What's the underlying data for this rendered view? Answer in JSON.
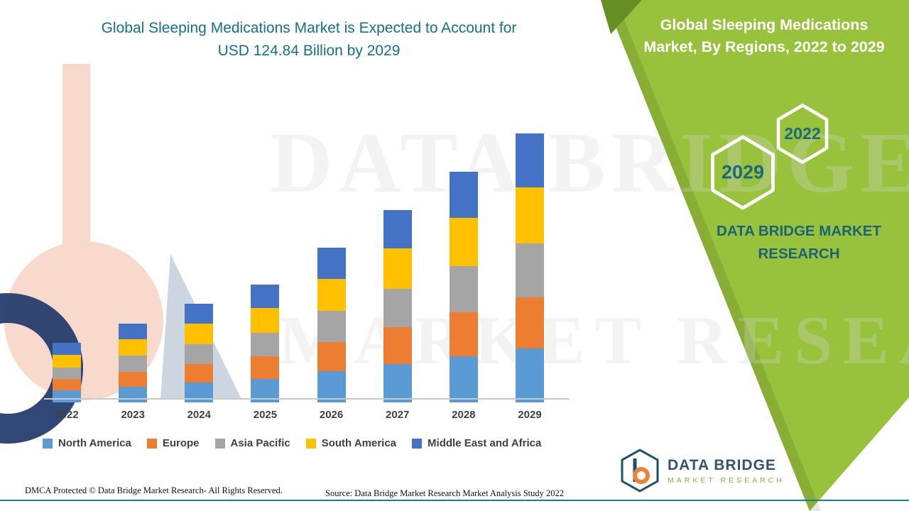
{
  "left_title": {
    "line1": "Global Sleeping Medications Market is Expected to Account for",
    "line2": "USD 124.84 Billion by 2029"
  },
  "right_panel": {
    "title_line1": "Global Sleeping Medications",
    "title_line2": "Market, By Regions, 2022 to 2029",
    "hex_badge_back": "2029",
    "hex_badge_front": "2022",
    "brand_line1": "DATA BRIDGE MARKET",
    "brand_line2": "RESEARCH",
    "panel_color": "#98c23c",
    "badge_text_color": "#1a6a7e"
  },
  "watermark": {
    "line1": "DATA BRIDGE",
    "line2": "MARKET RESEARCH"
  },
  "footer": {
    "dmca": "DMCA Protected © Data Bridge Market Research- All Rights Reserved.",
    "source": "Source: Data Bridge Market Research Market Analysis Study 2022"
  },
  "logo": {
    "name": "DATA BRIDGE",
    "subtitle": "MARKET RESEARCH"
  },
  "chart_data": {
    "type": "bar",
    "stacked": true,
    "title": "Global Sleeping Medications Market is Expected to Account for USD 124.84 Billion by 2029",
    "unit": "USD Billion",
    "categories": [
      "2022",
      "2023",
      "2024",
      "2025",
      "2026",
      "2027",
      "2028",
      "2029"
    ],
    "series": [
      {
        "name": "North America",
        "color": "#5b9bd5",
        "values": [
          5.5,
          7.3,
          9.2,
          10.9,
          14.4,
          17.9,
          21.4,
          25.0
        ]
      },
      {
        "name": "Europe",
        "color": "#ed7d31",
        "values": [
          5.3,
          7.0,
          8.7,
          10.4,
          13.6,
          17.0,
          20.3,
          23.7
        ]
      },
      {
        "name": "Asia Pacific",
        "color": "#a5a5a5",
        "values": [
          5.5,
          7.3,
          9.2,
          10.9,
          14.4,
          17.9,
          21.4,
          25.0
        ]
      },
      {
        "name": "South America",
        "color": "#ffc000",
        "values": [
          5.8,
          7.7,
          9.6,
          11.5,
          15.1,
          18.8,
          22.5,
          26.2
        ]
      },
      {
        "name": "Middle East and Africa",
        "color": "#4472c4",
        "values": [
          5.6,
          7.3,
          9.1,
          11.0,
          14.3,
          17.7,
          21.5,
          24.94
        ]
      }
    ],
    "totals": [
      27.7,
      36.6,
      45.8,
      54.7,
      71.8,
      89.3,
      107.1,
      124.84
    ],
    "highlight_value_2029": "124.84",
    "ylim": [
      0,
      130
    ],
    "grid": false,
    "legend_position": "bottom"
  }
}
